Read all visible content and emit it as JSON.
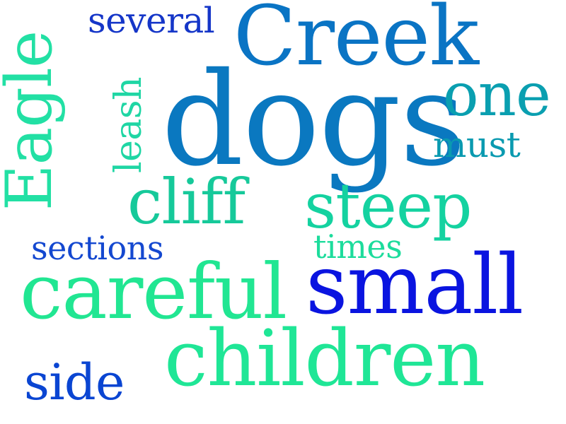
{
  "words": [
    {
      "key": "dogs",
      "text": "dogs",
      "color": "#0a78c0"
    },
    {
      "key": "creek",
      "text": "Creek",
      "color": "#0a74c4"
    },
    {
      "key": "eagle",
      "text": "Eagle",
      "color": "#22e0a4"
    },
    {
      "key": "several",
      "text": "several",
      "color": "#1536c8"
    },
    {
      "key": "one",
      "text": "one",
      "color": "#0a9fb0"
    },
    {
      "key": "must",
      "text": "must",
      "color": "#0a9ab0"
    },
    {
      "key": "leash",
      "text": "leash",
      "color": "#1fd6a4"
    },
    {
      "key": "cliff",
      "text": "cliff",
      "color": "#16c99a"
    },
    {
      "key": "steep",
      "text": "steep",
      "color": "#14d2a0"
    },
    {
      "key": "sections",
      "text": "sections",
      "color": "#1448d0"
    },
    {
      "key": "times",
      "text": "times",
      "color": "#1ddc9c"
    },
    {
      "key": "careful",
      "text": "careful",
      "color": "#21e692"
    },
    {
      "key": "small",
      "text": "small",
      "color": "#0a14e0"
    },
    {
      "key": "side",
      "text": "side",
      "color": "#0a45d2"
    },
    {
      "key": "children",
      "text": "children",
      "color": "#1fe696"
    }
  ]
}
